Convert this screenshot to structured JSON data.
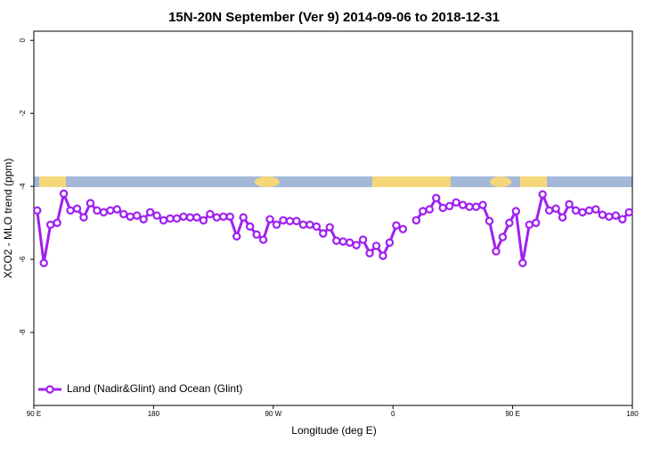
{
  "chart_data": {
    "type": "line",
    "title": "15N-20N September (Ver 9)   2014-09-06 to 2018-12-31",
    "x_label": "Longitude (deg E)",
    "y_label": "XCO2 - MLO trend (ppm)",
    "x": [
      92.5,
      97.5,
      102.5,
      107.5,
      112.5,
      117.5,
      122.5,
      127.5,
      132.5,
      137.5,
      142.5,
      147.5,
      152.5,
      157.5,
      162.5,
      167.5,
      172.5,
      177.5,
      182.5,
      187.5,
      192.5,
      197.5,
      202.5,
      207.5,
      212.5,
      217.5,
      222.5,
      227.5,
      232.5,
      237.5,
      242.5,
      247.5,
      252.5,
      257.5,
      262.5,
      267.5,
      272.5,
      277.5,
      282.5,
      287.5,
      292.5,
      297.5,
      302.5,
      307.5,
      312.5,
      317.5,
      322.5,
      327.5,
      332.5,
      337.5,
      342.5,
      347.5,
      352.5,
      357.5,
      362.5,
      367.5,
      372.5,
      377.5,
      382.5,
      387.5,
      392.5,
      397.5,
      402.5,
      407.5,
      412.5,
      417.5,
      422.5,
      427.5,
      432.5,
      437.5,
      442.5,
      447.5,
      452.5,
      457.5,
      462.5,
      467.5,
      472.5,
      477.5,
      482.5,
      487.5,
      492.5,
      497.5,
      502.5,
      507.5,
      512.5,
      517.5,
      522.5,
      527.5,
      532.5,
      537.5
    ],
    "series": [
      {
        "name": "Land (Nadir&Glint) and Ocean (Glint)",
        "color": "#a020f0",
        "values": [
          -4.66,
          -6.1,
          -5.05,
          -5.0,
          -4.2,
          -4.66,
          -4.61,
          -4.85,
          -4.46,
          -4.66,
          -4.71,
          -4.66,
          -4.63,
          -4.76,
          -4.83,
          -4.8,
          -4.9,
          -4.71,
          -4.8,
          -4.93,
          -4.88,
          -4.88,
          -4.83,
          -4.85,
          -4.85,
          -4.93,
          -4.76,
          -4.85,
          -4.83,
          -4.83,
          -5.37,
          -4.85,
          -5.1,
          -5.32,
          -5.46,
          -4.9,
          -5.05,
          -4.93,
          -4.95,
          -4.95,
          -5.05,
          -5.05,
          -5.1,
          -5.29,
          -5.12,
          -5.49,
          -5.51,
          -5.54,
          -5.61,
          -5.46,
          -5.83,
          -5.63,
          -5.9,
          -5.54,
          -5.07,
          -5.17,
          null,
          -4.93,
          -4.68,
          -4.63,
          -4.32,
          -4.59,
          -4.54,
          -4.44,
          -4.51,
          -4.56,
          -4.56,
          -4.51,
          -4.95,
          -5.78,
          -5.39,
          -5.0,
          -4.68,
          -6.1,
          -5.05,
          -5.0,
          -4.22,
          -4.66,
          -4.61,
          -4.85,
          -4.49,
          -4.66,
          -4.71,
          -4.66,
          -4.63,
          -4.78,
          -4.83,
          -4.8,
          -4.9,
          -4.71
        ]
      }
    ],
    "xlim": [
      90,
      540
    ],
    "xticks": [
      {
        "value": 90,
        "label": "90 E"
      },
      180,
      {
        "value": 270,
        "label": "90 W"
      },
      {
        "value": 360,
        "label": "0"
      },
      {
        "value": 450,
        "label": "90 E"
      },
      {
        "value": 540,
        "label": "180"
      }
    ],
    "ylim": [
      -10,
      0.25
    ],
    "yticks": [
      0,
      -2,
      -4,
      -6,
      -8
    ],
    "legend": "bottom-left"
  }
}
